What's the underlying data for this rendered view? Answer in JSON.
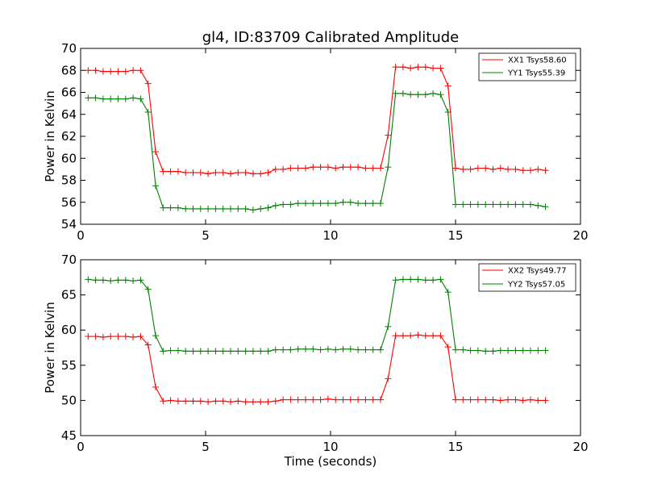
{
  "chart_data": [
    {
      "type": "line",
      "title": "gl4, ID:83709 Calibrated Amplitude",
      "xlabel": "",
      "ylabel": "Power in Kelvin",
      "xlim": [
        0,
        20
      ],
      "ylim": [
        54,
        70
      ],
      "xticks": [
        0,
        5,
        10,
        15,
        20
      ],
      "yticks": [
        54,
        56,
        58,
        60,
        62,
        64,
        66,
        68,
        70
      ],
      "grid": false,
      "legend": "top-right",
      "x": [
        0.3,
        0.6,
        0.9,
        1.2,
        1.5,
        1.8,
        2.1,
        2.4,
        2.7,
        3.0,
        3.3,
        3.6,
        3.9,
        4.2,
        4.5,
        4.8,
        5.1,
        5.4,
        5.7,
        6.0,
        6.3,
        6.6,
        6.9,
        7.2,
        7.5,
        7.8,
        8.1,
        8.4,
        8.7,
        9.0,
        9.3,
        9.6,
        9.9,
        10.2,
        10.5,
        10.8,
        11.1,
        11.4,
        11.7,
        12.0,
        12.3,
        12.6,
        12.9,
        13.2,
        13.5,
        13.8,
        14.1,
        14.4,
        14.7,
        15.0,
        15.3,
        15.6,
        15.9,
        16.2,
        16.5,
        16.8,
        17.1,
        17.4,
        17.7,
        18.0,
        18.3,
        18.6
      ],
      "series": [
        {
          "name": "XX1 Tsys58.60",
          "color": "#ff0000",
          "values": [
            68.0,
            68.0,
            67.9,
            67.9,
            67.9,
            67.9,
            68.0,
            68.0,
            66.8,
            60.6,
            58.8,
            58.8,
            58.8,
            58.7,
            58.7,
            58.7,
            58.6,
            58.7,
            58.7,
            58.6,
            58.7,
            58.7,
            58.6,
            58.6,
            58.7,
            59.0,
            59.0,
            59.1,
            59.1,
            59.1,
            59.2,
            59.2,
            59.2,
            59.1,
            59.2,
            59.2,
            59.2,
            59.1,
            59.1,
            59.1,
            62.1,
            68.3,
            68.3,
            68.2,
            68.3,
            68.3,
            68.2,
            68.2,
            66.6,
            59.1,
            59.0,
            59.0,
            59.1,
            59.1,
            59.0,
            59.1,
            59.0,
            59.0,
            58.9,
            58.9,
            59.0,
            58.9
          ]
        },
        {
          "name": "YY1 Tsys55.39",
          "color": "#008000",
          "values": [
            65.5,
            65.5,
            65.4,
            65.4,
            65.4,
            65.4,
            65.5,
            65.4,
            64.2,
            57.5,
            55.5,
            55.5,
            55.5,
            55.4,
            55.4,
            55.4,
            55.4,
            55.4,
            55.4,
            55.4,
            55.4,
            55.4,
            55.3,
            55.4,
            55.5,
            55.7,
            55.8,
            55.8,
            55.9,
            55.9,
            55.9,
            55.9,
            55.9,
            55.9,
            56.0,
            56.0,
            55.9,
            55.9,
            55.9,
            55.9,
            59.2,
            65.9,
            65.9,
            65.8,
            65.8,
            65.8,
            65.9,
            65.8,
            64.2,
            55.8,
            55.8,
            55.8,
            55.8,
            55.8,
            55.8,
            55.8,
            55.8,
            55.8,
            55.8,
            55.8,
            55.7,
            55.6
          ]
        }
      ]
    },
    {
      "type": "line",
      "title": "",
      "xlabel": "Time (seconds)",
      "ylabel": "Power in Kelvin",
      "xlim": [
        0,
        20
      ],
      "ylim": [
        45,
        70
      ],
      "xticks": [
        0,
        5,
        10,
        15,
        20
      ],
      "yticks": [
        45,
        50,
        55,
        60,
        65,
        70
      ],
      "grid": false,
      "legend": "top-right",
      "x": [
        0.3,
        0.6,
        0.9,
        1.2,
        1.5,
        1.8,
        2.1,
        2.4,
        2.7,
        3.0,
        3.3,
        3.6,
        3.9,
        4.2,
        4.5,
        4.8,
        5.1,
        5.4,
        5.7,
        6.0,
        6.3,
        6.6,
        6.9,
        7.2,
        7.5,
        7.8,
        8.1,
        8.4,
        8.7,
        9.0,
        9.3,
        9.6,
        9.9,
        10.2,
        10.5,
        10.8,
        11.1,
        11.4,
        11.7,
        12.0,
        12.3,
        12.6,
        12.9,
        13.2,
        13.5,
        13.8,
        14.1,
        14.4,
        14.7,
        15.0,
        15.3,
        15.6,
        15.9,
        16.2,
        16.5,
        16.8,
        17.1,
        17.4,
        17.7,
        18.0,
        18.3,
        18.6
      ],
      "series": [
        {
          "name": "XX2 Tsys49.77",
          "color": "#ff0000",
          "values": [
            59.1,
            59.1,
            59.0,
            59.1,
            59.1,
            59.1,
            59.0,
            59.1,
            57.9,
            51.9,
            49.9,
            50.0,
            49.9,
            49.9,
            49.9,
            49.9,
            49.8,
            49.9,
            49.9,
            49.8,
            49.9,
            49.8,
            49.8,
            49.8,
            49.8,
            49.9,
            50.1,
            50.1,
            50.1,
            50.1,
            50.1,
            50.1,
            50.2,
            50.1,
            50.1,
            50.1,
            50.1,
            50.1,
            50.1,
            50.1,
            53.1,
            59.2,
            59.2,
            59.2,
            59.3,
            59.2,
            59.2,
            59.2,
            57.6,
            50.1,
            50.1,
            50.1,
            50.1,
            50.1,
            50.1,
            50.0,
            50.1,
            50.1,
            50.0,
            50.1,
            50.0,
            50.0
          ]
        },
        {
          "name": "YY2 Tsys57.05",
          "color": "#008000",
          "values": [
            67.2,
            67.1,
            67.1,
            67.0,
            67.1,
            67.1,
            67.0,
            67.1,
            65.8,
            59.2,
            57.0,
            57.1,
            57.1,
            57.0,
            57.0,
            57.0,
            57.0,
            57.0,
            57.0,
            57.0,
            57.0,
            57.0,
            57.0,
            57.0,
            57.0,
            57.2,
            57.2,
            57.2,
            57.3,
            57.3,
            57.3,
            57.2,
            57.3,
            57.2,
            57.3,
            57.3,
            57.2,
            57.2,
            57.2,
            57.2,
            60.5,
            67.1,
            67.2,
            67.2,
            67.2,
            67.1,
            67.1,
            67.2,
            65.4,
            57.2,
            57.2,
            57.1,
            57.1,
            57.0,
            57.0,
            57.1,
            57.1,
            57.1,
            57.1,
            57.1,
            57.1,
            57.1
          ]
        }
      ]
    }
  ]
}
